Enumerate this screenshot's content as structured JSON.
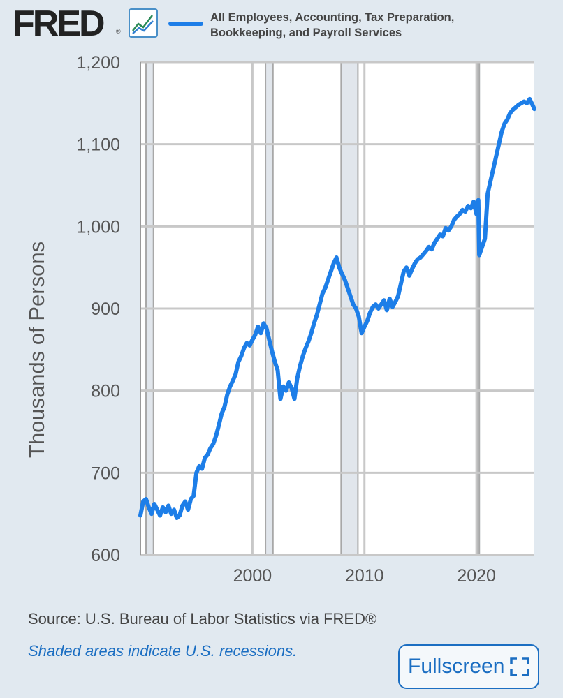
{
  "header": {
    "logo_text": "FRED",
    "logo_mark": "®",
    "graph_icon": "line-graph-icon",
    "legend_label": "All Employees, Accounting, Tax Preparation, Bookkeeping, and Payroll Services"
  },
  "footer": {
    "source": "Source: U.S. Bureau of Labor Statistics via FRED®",
    "note": "Shaded areas indicate U.S. recessions.",
    "fullscreen_label": "Fullscreen",
    "fullscreen_icon": "expand-icon"
  },
  "colors": {
    "series": "#1d7ee8",
    "background": "#e1e9f0",
    "plot_background": "#ffffff",
    "recession_shade": "#e1e6ec",
    "grid": "#c8c8c8",
    "link": "#1b6ec2"
  },
  "chart_data": {
    "type": "line",
    "title": "",
    "xlabel": "",
    "ylabel": "Thousands of Persons",
    "ylim": [
      600,
      1200
    ],
    "xlim": [
      "1990-01",
      "2025-03"
    ],
    "yticks": [
      600,
      700,
      800,
      900,
      1000,
      1100,
      1200
    ],
    "ytick_labels": [
      "600",
      "700",
      "800",
      "900",
      "1,000",
      "1,100",
      "1,200"
    ],
    "xticks": [
      2000,
      2010,
      2020
    ],
    "xtick_labels": [
      "2000",
      "2010",
      "2020"
    ],
    "grid": true,
    "recessions": [
      [
        "1990-07",
        "1991-03"
      ],
      [
        "2001-03",
        "2001-11"
      ],
      [
        "2007-12",
        "2009-06"
      ],
      [
        "2020-02",
        "2020-04"
      ]
    ],
    "series": [
      {
        "name": "All Employees, Accounting, Tax Preparation, Bookkeeping, and Payroll Services",
        "x": [
          "1990-01",
          "1990-04",
          "1990-07",
          "1990-10",
          "1991-01",
          "1991-04",
          "1991-07",
          "1991-10",
          "1992-01",
          "1992-04",
          "1992-07",
          "1992-10",
          "1993-01",
          "1993-04",
          "1993-07",
          "1993-10",
          "1994-01",
          "1994-04",
          "1994-07",
          "1994-10",
          "1995-01",
          "1995-04",
          "1995-07",
          "1995-10",
          "1996-01",
          "1996-04",
          "1996-07",
          "1996-10",
          "1997-01",
          "1997-04",
          "1997-07",
          "1997-10",
          "1998-01",
          "1998-04",
          "1998-07",
          "1998-10",
          "1999-01",
          "1999-04",
          "1999-07",
          "1999-10",
          "2000-01",
          "2000-04",
          "2000-07",
          "2000-10",
          "2001-01",
          "2001-04",
          "2001-07",
          "2001-10",
          "2002-01",
          "2002-04",
          "2002-07",
          "2002-10",
          "2003-01",
          "2003-04",
          "2003-07",
          "2003-10",
          "2004-01",
          "2004-04",
          "2004-07",
          "2004-10",
          "2005-01",
          "2005-04",
          "2005-07",
          "2005-10",
          "2006-01",
          "2006-04",
          "2006-07",
          "2006-10",
          "2007-01",
          "2007-04",
          "2007-07",
          "2007-10",
          "2008-01",
          "2008-04",
          "2008-07",
          "2008-10",
          "2009-01",
          "2009-04",
          "2009-07",
          "2009-10",
          "2010-01",
          "2010-04",
          "2010-07",
          "2010-10",
          "2011-01",
          "2011-04",
          "2011-07",
          "2011-10",
          "2012-01",
          "2012-04",
          "2012-07",
          "2012-10",
          "2013-01",
          "2013-04",
          "2013-07",
          "2013-10",
          "2014-01",
          "2014-04",
          "2014-07",
          "2014-10",
          "2015-01",
          "2015-04",
          "2015-07",
          "2015-10",
          "2016-01",
          "2016-04",
          "2016-07",
          "2016-10",
          "2017-01",
          "2017-04",
          "2017-07",
          "2017-10",
          "2018-01",
          "2018-04",
          "2018-07",
          "2018-10",
          "2019-01",
          "2019-04",
          "2019-07",
          "2019-10",
          "2020-01",
          "2020-03",
          "2020-04",
          "2020-07",
          "2020-10",
          "2021-01",
          "2021-04",
          "2021-07",
          "2021-10",
          "2022-01",
          "2022-04",
          "2022-07",
          "2022-10",
          "2023-01",
          "2023-04",
          "2023-07",
          "2023-10",
          "2024-01",
          "2024-04",
          "2024-07",
          "2024-10",
          "2025-01",
          "2025-03"
        ],
        "values": [
          648,
          665,
          668,
          658,
          650,
          662,
          655,
          648,
          658,
          652,
          660,
          650,
          655,
          645,
          648,
          660,
          665,
          655,
          668,
          672,
          700,
          708,
          705,
          718,
          722,
          730,
          735,
          745,
          758,
          772,
          780,
          795,
          805,
          812,
          820,
          835,
          842,
          852,
          858,
          855,
          862,
          868,
          878,
          870,
          882,
          876,
          862,
          848,
          835,
          825,
          790,
          805,
          800,
          810,
          803,
          790,
          815,
          830,
          842,
          852,
          860,
          870,
          882,
          892,
          905,
          918,
          925,
          935,
          945,
          955,
          962,
          950,
          942,
          935,
          925,
          915,
          905,
          900,
          890,
          870,
          878,
          885,
          895,
          902,
          905,
          900,
          905,
          910,
          898,
          912,
          902,
          908,
          915,
          930,
          945,
          950,
          940,
          948,
          955,
          960,
          962,
          966,
          970,
          975,
          972,
          980,
          985,
          990,
          988,
          998,
          995,
          1000,
          1008,
          1012,
          1015,
          1020,
          1018,
          1025,
          1022,
          1030,
          1015,
          1032,
          965,
          975,
          985,
          1040,
          1055,
          1070,
          1085,
          1100,
          1115,
          1125,
          1130,
          1138,
          1142,
          1145,
          1148,
          1150,
          1152,
          1150,
          1155,
          1148,
          1143
        ]
      }
    ]
  }
}
